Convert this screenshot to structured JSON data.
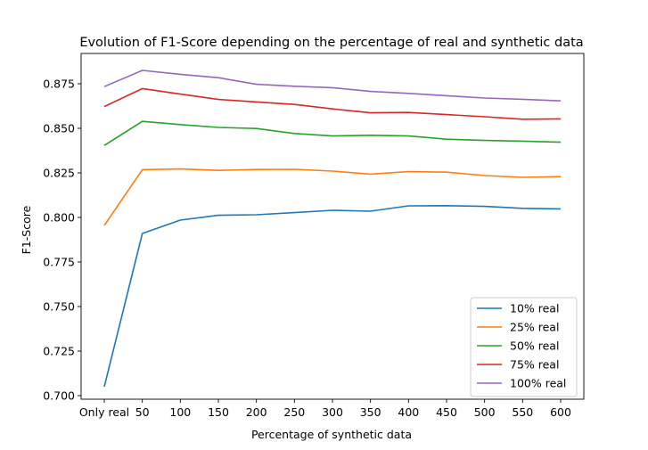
{
  "chart_data": {
    "type": "line",
    "title": "Evolution of F1-Score depending on the percentage of real and synthetic data",
    "xlabel": "Percentage of synthetic data",
    "ylabel": "F1-Score",
    "categories": [
      "Only real",
      "50",
      "100",
      "150",
      "200",
      "250",
      "300",
      "350",
      "400",
      "450",
      "500",
      "550",
      "600"
    ],
    "ylim": [
      0.698,
      0.892
    ],
    "yticks": [
      "0.700",
      "0.725",
      "0.750",
      "0.775",
      "0.800",
      "0.825",
      "0.850",
      "0.875"
    ],
    "grid": false,
    "legend_position": "bottom-right",
    "series": [
      {
        "name": "10% real",
        "color": "#1f77b4",
        "values": [
          0.705,
          0.791,
          0.7985,
          0.8012,
          0.8015,
          0.8027,
          0.804,
          0.8035,
          0.8065,
          0.8066,
          0.8062,
          0.8051,
          0.8048
        ]
      },
      {
        "name": "25% real",
        "color": "#ff7f0e",
        "values": [
          0.7955,
          0.8268,
          0.8272,
          0.8264,
          0.8269,
          0.827,
          0.826,
          0.8243,
          0.8257,
          0.8254,
          0.8235,
          0.8225,
          0.8229
        ]
      },
      {
        "name": "50% real",
        "color": "#2ca02c",
        "values": [
          0.8404,
          0.8539,
          0.8521,
          0.8505,
          0.8499,
          0.8471,
          0.8457,
          0.8461,
          0.8457,
          0.8439,
          0.8432,
          0.8428,
          0.8422
        ]
      },
      {
        "name": "75% real",
        "color": "#d62728",
        "values": [
          0.8622,
          0.8723,
          0.8692,
          0.8662,
          0.8648,
          0.8634,
          0.8609,
          0.8587,
          0.8589,
          0.8577,
          0.8565,
          0.8551,
          0.8553
        ]
      },
      {
        "name": "100% real",
        "color": "#9467bd",
        "values": [
          0.8734,
          0.8825,
          0.8803,
          0.8784,
          0.8747,
          0.8736,
          0.8728,
          0.8707,
          0.8696,
          0.8683,
          0.867,
          0.8663,
          0.8654
        ]
      }
    ]
  }
}
